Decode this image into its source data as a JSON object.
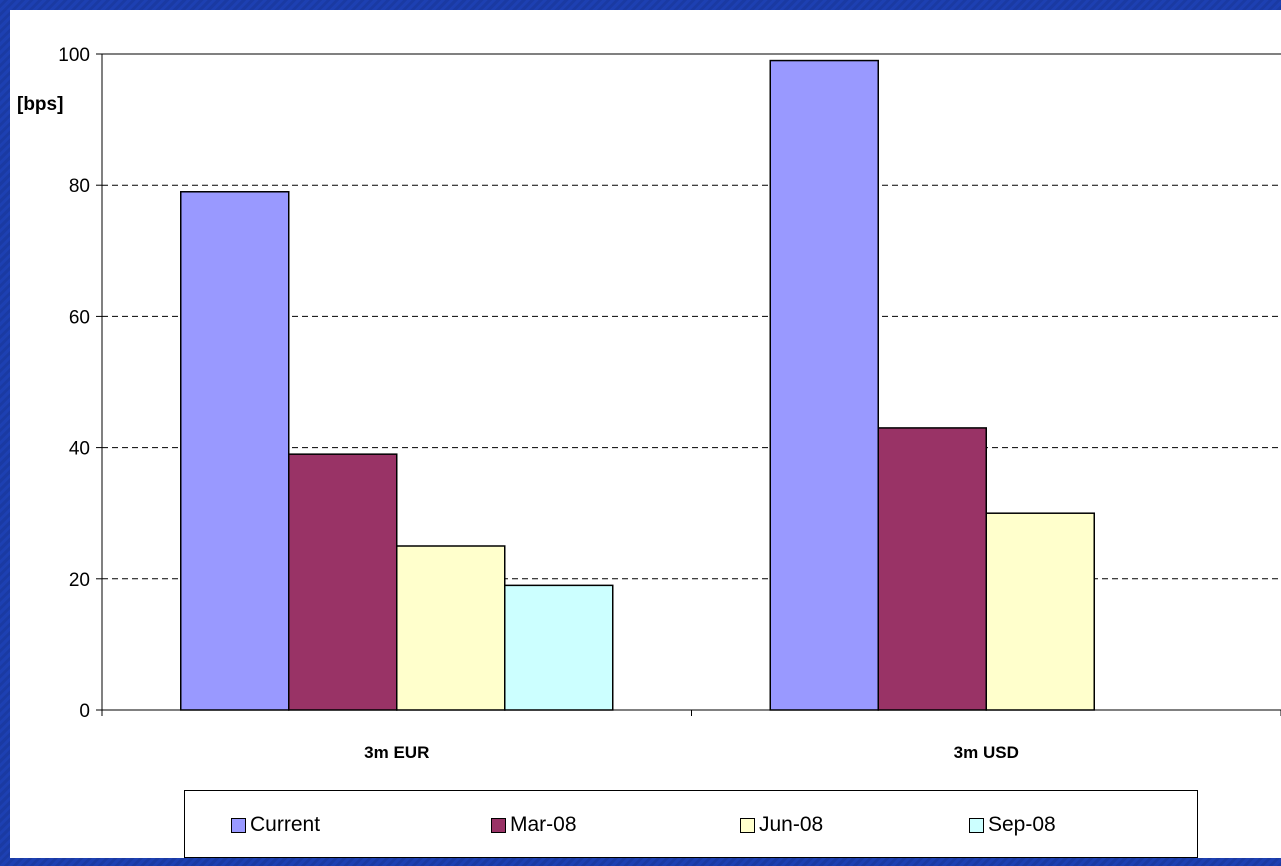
{
  "chart_data": {
    "type": "bar",
    "ylabel": "[bps]",
    "ylim": [
      0,
      100
    ],
    "yticks": [
      "0",
      "20",
      "40",
      "60",
      "80",
      "100"
    ],
    "grid": "horizontal-dashed",
    "legend_position": "bottom",
    "categories": [
      "3m EUR",
      "3m USD"
    ],
    "series": [
      {
        "name": "Current",
        "color": "#9999ff",
        "values": [
          79,
          99
        ]
      },
      {
        "name": "Mar-08",
        "color": "#993366",
        "values": [
          39,
          43
        ]
      },
      {
        "name": "Jun-08",
        "color": "#ffffcc",
        "values": [
          25,
          30
        ]
      },
      {
        "name": "Sep-08",
        "color": "#ccffff",
        "values": [
          19,
          null
        ]
      }
    ]
  }
}
